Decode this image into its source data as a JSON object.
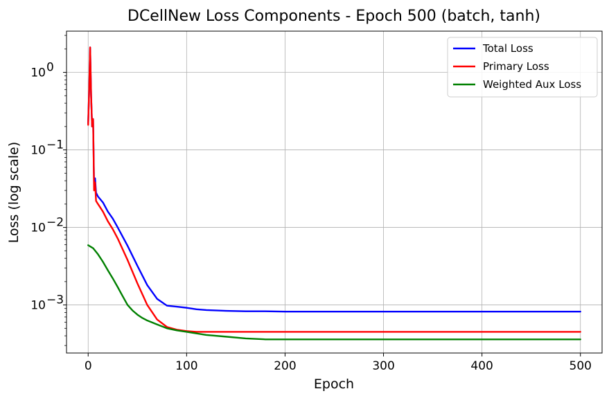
{
  "chart_data": {
    "type": "line",
    "title": "DCellNew Loss Components - Epoch 500 (batch, tanh)",
    "xlabel": "Epoch",
    "ylabel": "Loss (log scale)",
    "yscale": "log",
    "xlim": [
      -22,
      522
    ],
    "ylim": [
      0.00024,
      3.4
    ],
    "grid": true,
    "legend_position": "top-right",
    "xticks": [
      0,
      100,
      200,
      300,
      400,
      500
    ],
    "xtick_labels": [
      "0",
      "100",
      "200",
      "300",
      "400",
      "500"
    ],
    "yticks": [
      0.001,
      0.01,
      0.1,
      1
    ],
    "ytick_labels": [
      {
        "base": "10",
        "exp": "−3"
      },
      {
        "base": "10",
        "exp": "−2"
      },
      {
        "base": "10",
        "exp": "−1"
      },
      {
        "base": "10",
        "exp": "0"
      }
    ],
    "series": [
      {
        "name": "Total Loss",
        "color": "#0000ff",
        "x": [
          0,
          1,
          2,
          3,
          4,
          5,
          6,
          7,
          8,
          10,
          15,
          20,
          25,
          30,
          40,
          50,
          60,
          70,
          80,
          90,
          100,
          110,
          120,
          140,
          160,
          180,
          200,
          250,
          300,
          350,
          400,
          450,
          500
        ],
        "y": [
          0.22,
          0.6,
          2.1,
          0.5,
          0.2,
          0.25,
          0.035,
          0.043,
          0.028,
          0.025,
          0.021,
          0.016,
          0.013,
          0.01,
          0.0058,
          0.0032,
          0.0018,
          0.0012,
          0.00098,
          0.00095,
          0.00092,
          0.00088,
          0.00086,
          0.00084,
          0.00083,
          0.00083,
          0.00082,
          0.00082,
          0.00082,
          0.00082,
          0.00082,
          0.00082,
          0.00082
        ]
      },
      {
        "name": "Primary Loss",
        "color": "#ff0000",
        "x": [
          0,
          1,
          2,
          3,
          4,
          5,
          6,
          7,
          8,
          10,
          15,
          20,
          25,
          30,
          40,
          50,
          60,
          70,
          80,
          90,
          100,
          110,
          120,
          140,
          160,
          180,
          200,
          250,
          300,
          350,
          400,
          450,
          500
        ],
        "y": [
          0.21,
          0.6,
          2.1,
          0.5,
          0.2,
          0.25,
          0.03,
          0.038,
          0.022,
          0.02,
          0.016,
          0.012,
          0.0095,
          0.0072,
          0.0038,
          0.0019,
          0.001,
          0.00065,
          0.00052,
          0.00048,
          0.00046,
          0.00045,
          0.00045,
          0.00045,
          0.00045,
          0.00045,
          0.00045,
          0.00045,
          0.00045,
          0.00045,
          0.00045,
          0.00045,
          0.00045
        ]
      },
      {
        "name": "Weighted Aux Loss",
        "color": "#008000",
        "x": [
          0,
          5,
          10,
          15,
          20,
          25,
          30,
          35,
          40,
          45,
          50,
          55,
          60,
          70,
          80,
          90,
          100,
          110,
          120,
          140,
          160,
          180,
          200,
          250,
          300,
          350,
          400,
          450,
          500
        ],
        "y": [
          0.0059,
          0.0054,
          0.0045,
          0.0036,
          0.0028,
          0.0022,
          0.0017,
          0.0013,
          0.001,
          0.00085,
          0.00075,
          0.00068,
          0.00063,
          0.00056,
          0.0005,
          0.00047,
          0.00045,
          0.00043,
          0.00041,
          0.00039,
          0.00037,
          0.00036,
          0.00036,
          0.00036,
          0.00036,
          0.00036,
          0.00036,
          0.00036,
          0.00036
        ]
      }
    ]
  }
}
